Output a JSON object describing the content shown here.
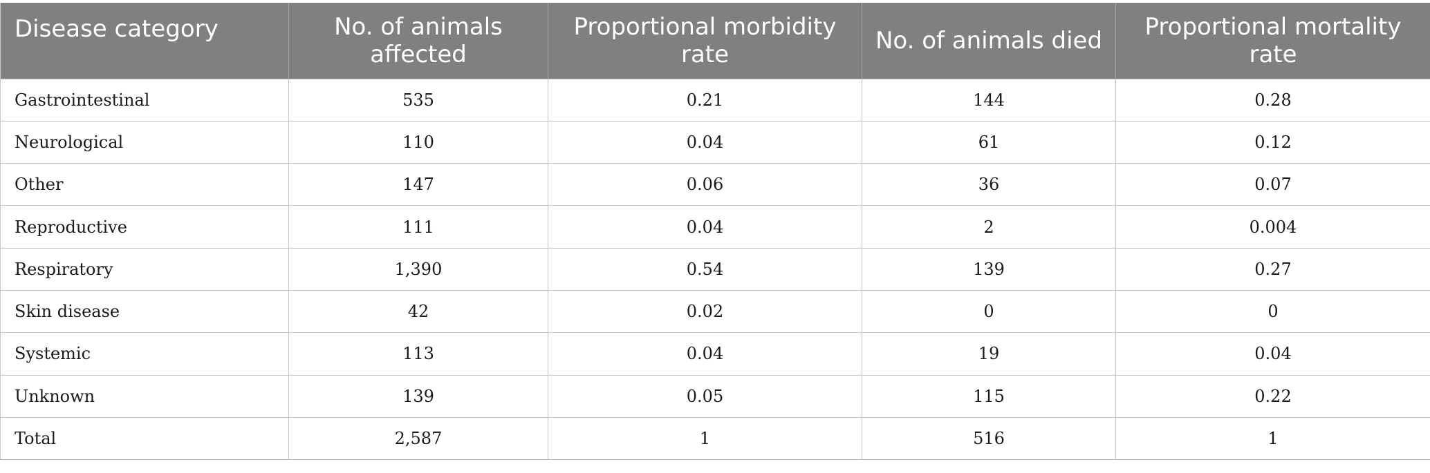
{
  "table": {
    "headers": [
      "Disease category",
      "No. of animals affected",
      "Proportional morbidity rate",
      "No. of animals died",
      "Proportional mortality rate"
    ],
    "rows": [
      [
        "Gastrointestinal",
        "535",
        "0.21",
        "144",
        "0.28"
      ],
      [
        "Neurological",
        "110",
        "0.04",
        "61",
        "0.12"
      ],
      [
        "Other",
        "147",
        "0.06",
        "36",
        "0.07"
      ],
      [
        "Reproductive",
        "111",
        "0.04",
        "2",
        "0.004"
      ],
      [
        "Respiratory",
        "1,390",
        "0.54",
        "139",
        "0.27"
      ],
      [
        "Skin disease",
        "42",
        "0.02",
        "0",
        "0"
      ],
      [
        "Systemic",
        "113",
        "0.04",
        "19",
        "0.04"
      ],
      [
        "Unknown",
        "139",
        "0.05",
        "115",
        "0.22"
      ],
      [
        "Total",
        "2,587",
        "1",
        "516",
        "1"
      ]
    ]
  },
  "colors": {
    "header_background": "#7f807f",
    "header_text": "#ffffff",
    "grid_lines": "#c4c4c4"
  }
}
